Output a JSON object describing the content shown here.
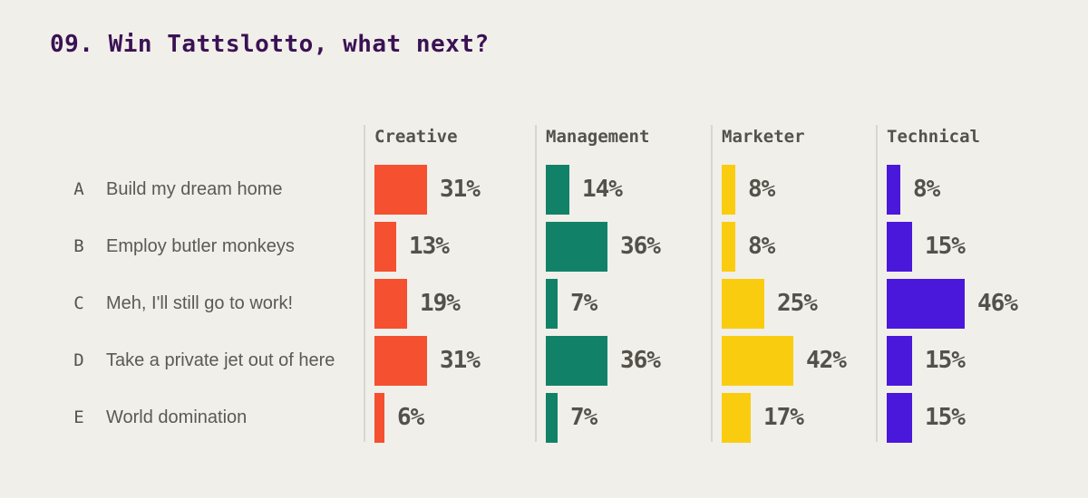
{
  "title": "09. Win Tattslotto, what next?",
  "colors": {
    "background": "#F1EFE9",
    "title": "#3A1254",
    "header_text": "#55524C",
    "option_text": "#5C5954",
    "value_text": "#54514B",
    "divider": "#D9D6CE"
  },
  "chart_data": {
    "type": "bar",
    "orientation": "horizontal",
    "title": "09. Win Tattslotto, what next?",
    "value_suffix": "%",
    "xlim": [
      0,
      100
    ],
    "grid": false,
    "legend_position": "column-headers",
    "rows": [
      {
        "letter": "A",
        "label": "Build my dream home"
      },
      {
        "letter": "B",
        "label": "Employ butler monkeys"
      },
      {
        "letter": "C",
        "label": "Meh, I'll still go to work!"
      },
      {
        "letter": "D",
        "label": "Take a private jet out of here"
      },
      {
        "letter": "E",
        "label": "World domination"
      }
    ],
    "series": [
      {
        "name": "Creative",
        "color": "#F5502F",
        "values": [
          31,
          13,
          19,
          31,
          6
        ]
      },
      {
        "name": "Management",
        "color": "#118268",
        "values": [
          14,
          36,
          7,
          36,
          7
        ]
      },
      {
        "name": "Marketer",
        "color": "#FACC0F",
        "values": [
          8,
          8,
          25,
          42,
          17
        ]
      },
      {
        "name": "Technical",
        "color": "#4A18DB",
        "values": [
          8,
          15,
          46,
          15,
          15
        ]
      }
    ]
  }
}
